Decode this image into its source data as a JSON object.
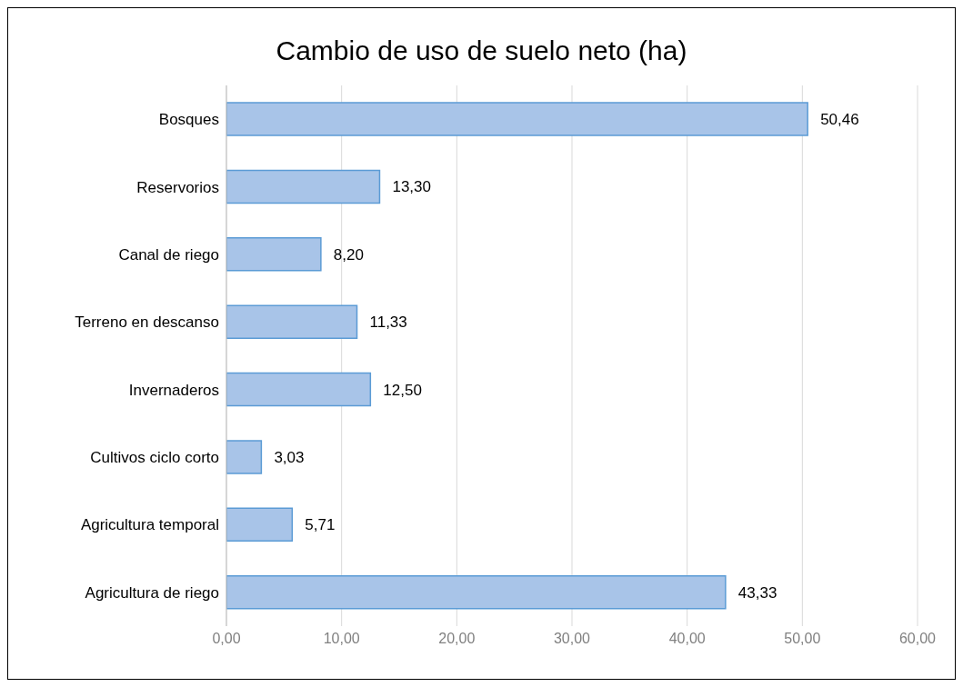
{
  "chart_data": {
    "type": "bar",
    "orientation": "horizontal",
    "title": "Cambio de uso de suelo neto (ha)",
    "categories": [
      "Bosques",
      "Reservorios",
      "Canal de riego",
      "Terreno en descanso",
      "Invernaderos",
      "Cultivos ciclo corto",
      "Agricultura temporal",
      "Agricultura de riego"
    ],
    "values": [
      50.46,
      13.3,
      8.2,
      11.33,
      12.5,
      3.03,
      5.71,
      43.33
    ],
    "value_labels": [
      "50,46",
      "13,30",
      "8,20",
      "11,33",
      "12,50",
      "3,03",
      "5,71",
      "43,33"
    ],
    "color": "#a8c4e8",
    "xlim": [
      0,
      60
    ],
    "xticks": [
      {
        "value": 0,
        "label": "0,00"
      },
      {
        "value": 10,
        "label": "10,00"
      },
      {
        "value": 20,
        "label": "20,00"
      },
      {
        "value": 30,
        "label": "30,00"
      },
      {
        "value": 40,
        "label": "40,00"
      },
      {
        "value": 50,
        "label": "50,00"
      },
      {
        "value": 60,
        "label": "60,00"
      }
    ],
    "grid": "x"
  }
}
